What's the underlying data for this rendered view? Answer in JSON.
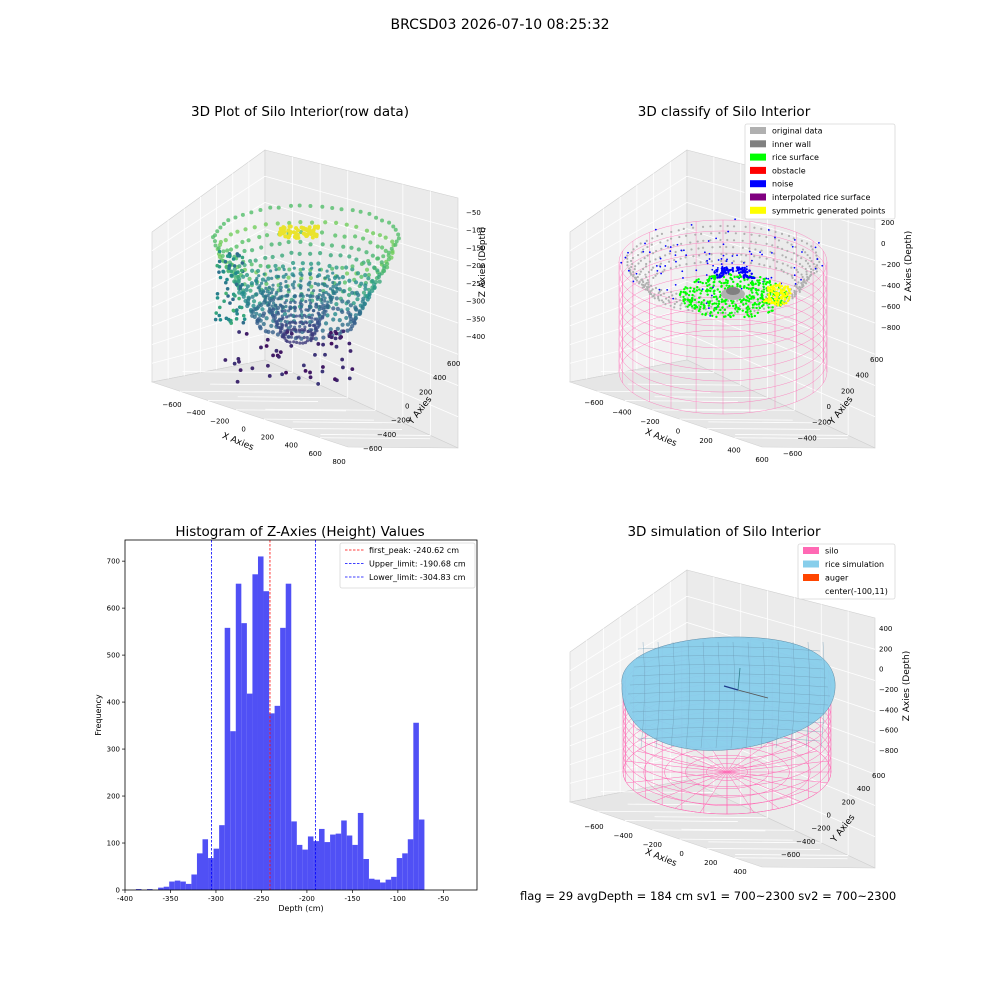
{
  "suptitle": "BRCSD03 2026-07-10 08:25:32",
  "colors": {
    "original_data": "#b0b0b0",
    "inner_wall": "#808080",
    "rice_surface": "#00ff00",
    "obstacle": "#ff0000",
    "noise": "#0000ff",
    "interpolated": "#800080",
    "symmetric": "#ffff00",
    "hist_bar": "#5050f5",
    "silo": "#ff69b4",
    "rice_sim": "#87ceeb",
    "auger": "#ff4500"
  },
  "panel1": {
    "title": "3D Plot of Silo Interior(row data)",
    "xlabel": "X Axies",
    "ylabel": "Y Axies",
    "zlabel": "Z Axies (Depth)",
    "xticks": [
      "−600",
      "−400",
      "−200",
      "0",
      "200",
      "400",
      "600",
      "800"
    ],
    "yticks": [
      "−600",
      "−400",
      "−200",
      "0",
      "200",
      "400",
      "600"
    ],
    "zticks": [
      "−50",
      "−100",
      "−150",
      "−200",
      "−250",
      "−300",
      "−350",
      "−400"
    ]
  },
  "panel2": {
    "title": "3D classify of Silo Interior",
    "xlabel": "X Axies",
    "ylabel": "Y Axies",
    "zlabel": "Z Axies (Depth)",
    "xticks": [
      "−600",
      "−400",
      "−200",
      "0",
      "200",
      "400",
      "600"
    ],
    "yticks": [
      "−600",
      "−400",
      "−200",
      "0",
      "200",
      "400",
      "600"
    ],
    "zticks": [
      "200",
      "0",
      "−200",
      "−400",
      "−600",
      "−800"
    ],
    "legend": [
      {
        "label": "original data",
        "color": "#b0b0b0"
      },
      {
        "label": "inner wall",
        "color": "#808080"
      },
      {
        "label": "rice surface",
        "color": "#00ff00"
      },
      {
        "label": "obstacle",
        "color": "#ff0000"
      },
      {
        "label": "noise",
        "color": "#0000ff"
      },
      {
        "label": "interpolated rice surface",
        "color": "#800080"
      },
      {
        "label": "symmetric generated points",
        "color": "#ffff00"
      }
    ]
  },
  "panel4": {
    "title": "3D simulation of Silo Interior",
    "xlabel": "X Axies",
    "ylabel": "Y Axies",
    "zlabel": "Z Axies (Depth)",
    "xticks": [
      "−600",
      "−400",
      "−200",
      "0",
      "200",
      "400"
    ],
    "yticks": [
      "−600",
      "−400",
      "−200",
      "0",
      "200",
      "400",
      "600"
    ],
    "zticks": [
      "400",
      "200",
      "0",
      "−200",
      "−400",
      "−600",
      "−800"
    ],
    "legend": [
      {
        "label": "silo",
        "color": "#ff69b4"
      },
      {
        "label": "rice simulation",
        "color": "#87ceeb"
      },
      {
        "label": "auger",
        "color": "#ff4500"
      },
      {
        "label": "center(-100,11)",
        "color": ""
      }
    ]
  },
  "bottom_note": "flag = 29  avgDepth = 184 cm  sv1 = 700~2300  sv2 = 700~2300",
  "chart_data": [
    {
      "type": "scatter",
      "title": "3D Plot of Silo Interior(row data)",
      "xlabel": "X Axies",
      "ylabel": "Y Axies",
      "zlabel": "Z Axies (Depth)",
      "xlim": [
        -700,
        800
      ],
      "ylim": [
        -650,
        650
      ],
      "zlim": [
        -400,
        -30
      ]
    },
    {
      "type": "scatter",
      "title": "3D classify of Silo Interior",
      "xlabel": "X Axies",
      "ylabel": "Y Axies",
      "zlabel": "Z Axies (Depth)",
      "xlim": [
        -700,
        600
      ],
      "ylim": [
        -650,
        650
      ],
      "zlim": [
        -900,
        300
      ],
      "series": [
        {
          "name": "original data"
        },
        {
          "name": "inner wall"
        },
        {
          "name": "rice surface"
        },
        {
          "name": "obstacle"
        },
        {
          "name": "noise"
        },
        {
          "name": "interpolated rice surface"
        },
        {
          "name": "symmetric generated points"
        }
      ]
    },
    {
      "type": "bar",
      "title": "Histogram of Z-Axies (Height) Values",
      "xlabel": "Depth (cm)",
      "ylabel": "Frequency",
      "xlim": [
        -400,
        -13
      ],
      "ylim": [
        0,
        745
      ],
      "xticks": [
        -400,
        -350,
        -300,
        -250,
        -200,
        -150,
        -100,
        -50
      ],
      "yticks": [
        0,
        100,
        200,
        300,
        400,
        500,
        600,
        700
      ],
      "bin_start": -388,
      "bin_width": 6.1,
      "values": [
        2,
        0,
        2,
        0,
        5,
        7,
        18,
        20,
        18,
        13,
        33,
        78,
        108,
        68,
        88,
        138,
        558,
        338,
        652,
        568,
        418,
        672,
        710,
        636,
        376,
        392,
        558,
        652,
        146,
        96,
        86,
        114,
        104,
        130,
        102,
        118,
        120,
        148,
        116,
        96,
        164,
        66,
        24,
        22,
        16,
        22,
        28,
        68,
        78,
        108,
        356,
        150
      ],
      "vlines": [
        {
          "label": "first_peak: -240.62 cm",
          "x": -240.62,
          "color": "#ff0000"
        },
        {
          "label": "Upper_limit: -190.68 cm",
          "x": -190.68,
          "color": "#0000ff"
        },
        {
          "label": "Lower_limit: -304.83 cm",
          "x": -304.83,
          "color": "#0000ff"
        }
      ]
    },
    {
      "type": "area",
      "title": "3D simulation of Silo Interior",
      "xlabel": "X Axies",
      "ylabel": "Y Axies",
      "zlabel": "Z Axies (Depth)",
      "xlim": [
        -700,
        500
      ],
      "ylim": [
        -650,
        650
      ],
      "zlim": [
        -900,
        450
      ],
      "series": [
        {
          "name": "silo"
        },
        {
          "name": "rice simulation"
        },
        {
          "name": "auger"
        },
        {
          "name": "center(-100,11)"
        }
      ]
    }
  ]
}
